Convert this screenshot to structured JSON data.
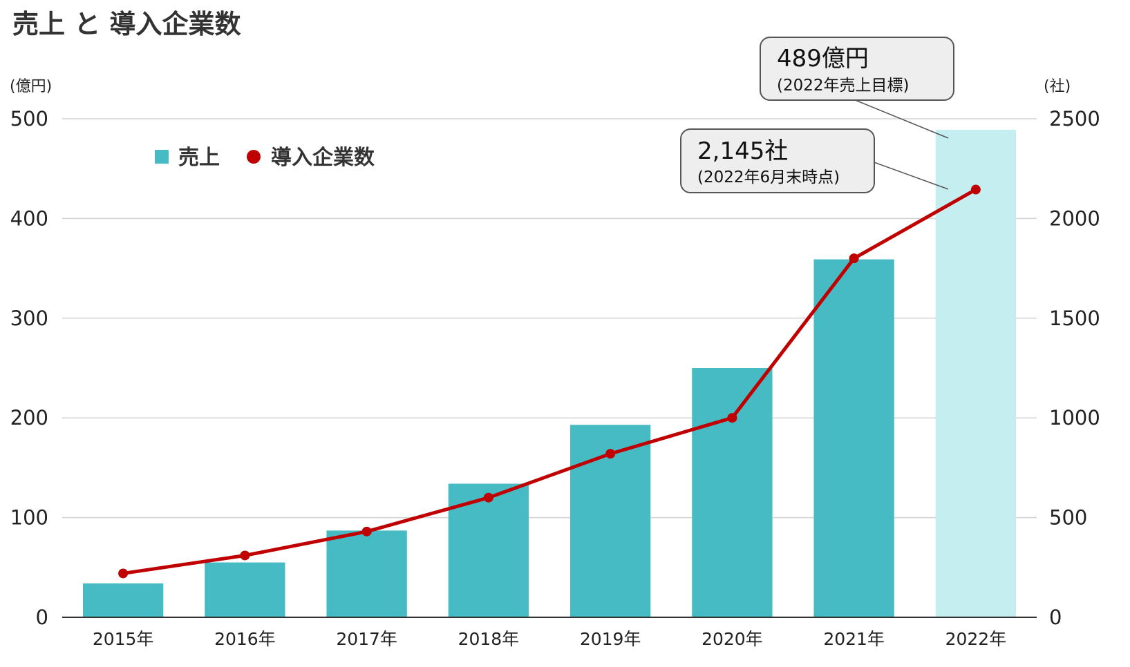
{
  "chart_data": {
    "type": "bar",
    "title": "売上 と 導入企業数",
    "y_left_unit": "(億円)",
    "y_right_unit": "(社)",
    "categories": [
      "2015年",
      "2016年",
      "2017年",
      "2018年",
      "2019年",
      "2020年",
      "2021年",
      "2022年"
    ],
    "series": [
      {
        "name": "売上",
        "type": "bar",
        "axis": "left",
        "values": [
          34,
          55,
          87,
          134,
          193,
          250,
          359,
          489
        ],
        "color": "#47bbc4",
        "target_color": "#c5eef1"
      },
      {
        "name": "導入企業数",
        "type": "line",
        "axis": "right",
        "values": [
          220,
          310,
          430,
          600,
          820,
          1000,
          1800,
          2145
        ],
        "color": "#c00000"
      }
    ],
    "ylim_left": [
      0,
      500
    ],
    "yticks_left": [
      "0",
      "100",
      "200",
      "300",
      "400",
      "500"
    ],
    "ylim_right": [
      0,
      2500
    ],
    "yticks_right": [
      "0",
      "500",
      "1000",
      "1500",
      "2000",
      "2500"
    ],
    "grid": true,
    "legend_position": "top-left",
    "annotations": [
      {
        "main": "489億円",
        "sub": "(2022年売上目標)",
        "target": "bar-2022"
      },
      {
        "main": "2,145社",
        "sub": "(2022年6月末時点)",
        "target": "point-2022"
      }
    ]
  }
}
